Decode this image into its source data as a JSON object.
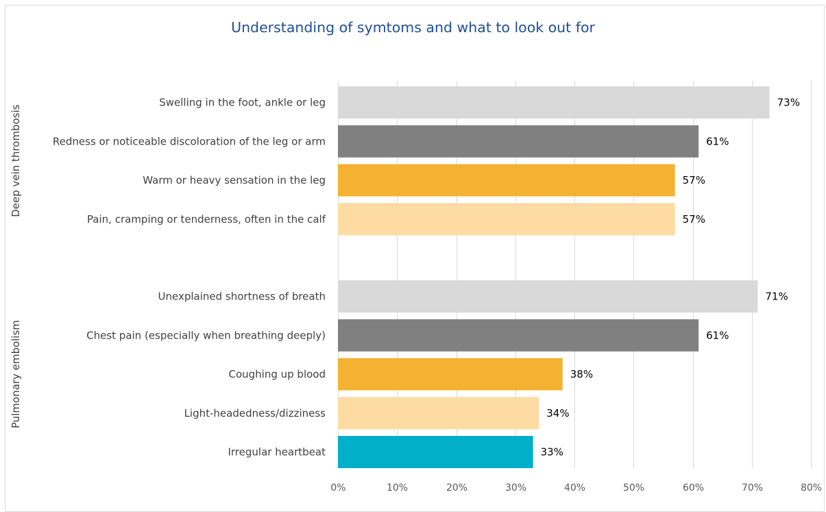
{
  "chart_data": {
    "type": "bar",
    "orientation": "horizontal",
    "title": "Understanding of symtoms and what to look out for",
    "xlim": [
      0,
      80
    ],
    "x_ticks": [
      "0%",
      "10%",
      "20%",
      "30%",
      "40%",
      "50%",
      "60%",
      "70%",
      "80%"
    ],
    "grid": true,
    "groups": [
      {
        "label": "Deep vein thrombosis",
        "bars": [
          {
            "label": "Swelling in the foot, ankle or leg",
            "value": 73,
            "value_label": "73%",
            "color": "#d9d9d9"
          },
          {
            "label": "Redness or noticeable discoloration of the leg or arm",
            "value": 61,
            "value_label": "61%",
            "color": "#808080"
          },
          {
            "label": "Warm or heavy sensation in the leg",
            "value": 57,
            "value_label": "57%",
            "color": "#f5b131"
          },
          {
            "label": "Pain, cramping or tenderness, often in the calf",
            "value": 57,
            "value_label": "57%",
            "color": "#fddba2"
          }
        ]
      },
      {
        "label": "Pulmonary embolism",
        "bars": [
          {
            "label": "Unexplained shortness of breath",
            "value": 71,
            "value_label": "71%",
            "color": "#d9d9d9"
          },
          {
            "label": "Chest pain (especially when breathing deeply)",
            "value": 61,
            "value_label": "61%",
            "color": "#808080"
          },
          {
            "label": "Coughing up blood",
            "value": 38,
            "value_label": "38%",
            "color": "#f5b131"
          },
          {
            "label": "Light-headedness/dizziness",
            "value": 34,
            "value_label": "34%",
            "color": "#fddba2"
          },
          {
            "label": "Irregular heartbeat",
            "value": 33,
            "value_label": "33%",
            "color": "#00b0c8"
          }
        ]
      }
    ]
  }
}
